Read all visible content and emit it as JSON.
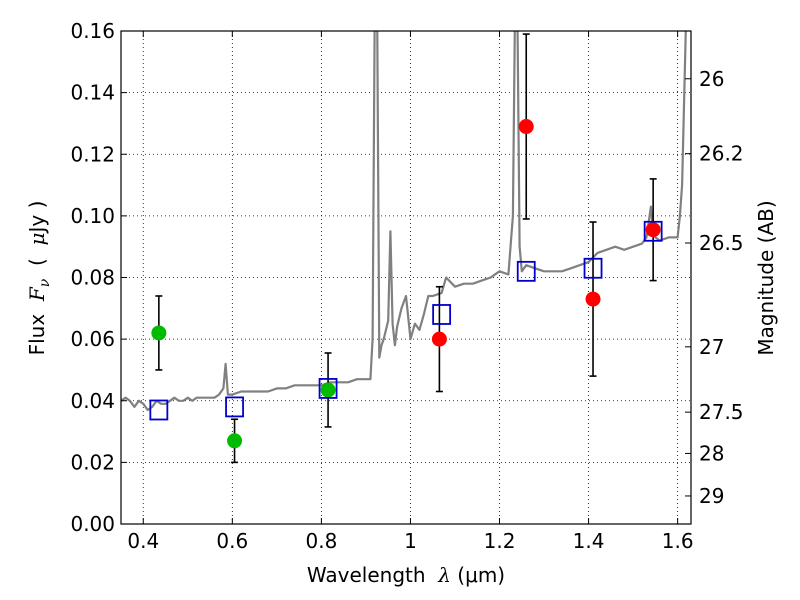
{
  "chart_data": {
    "type": "scatter",
    "title": "",
    "xlabel": {
      "prefix": "Wavelength  ",
      "symbol": "λ",
      "units": " (μm)"
    },
    "ylabel": {
      "prefix": "Flux  ",
      "symbol": "F",
      "subscript": "ν",
      "open": "  (  ",
      "mu": "μ",
      "unit": "Jy  )"
    },
    "y2label": "Magnitude (AB)",
    "xlim": [
      0.35,
      1.63
    ],
    "ylim": [
      0.0,
      0.16
    ],
    "xticks": [
      0.4,
      0.6,
      0.8,
      1.0,
      1.2,
      1.4,
      1.6
    ],
    "xtick_labels": [
      "0.4",
      "0.6",
      "0.8",
      "1",
      "1.2",
      "1.4",
      "1.6"
    ],
    "yticks": [
      0.0,
      0.02,
      0.04,
      0.06,
      0.08,
      0.1,
      0.12,
      0.14,
      0.16
    ],
    "ytick_labels": [
      "0.00",
      "0.02",
      "0.04",
      "0.06",
      "0.08",
      "0.10",
      "0.12",
      "0.14",
      "0.16"
    ],
    "y2ticks": [
      {
        "label": "26",
        "flux": 0.1445
      },
      {
        "label": "26.2",
        "flux": 0.1202
      },
      {
        "label": "26.5",
        "flux": 0.0912
      },
      {
        "label": "27",
        "flux": 0.0575
      },
      {
        "label": "27.5",
        "flux": 0.0363
      },
      {
        "label": "28",
        "flux": 0.0229
      },
      {
        "label": "29",
        "flux": 0.0091
      }
    ],
    "grid": true,
    "colors": {
      "model": "#808080",
      "green": "#00bb00",
      "red": "#ff0000",
      "box": "#0000cc",
      "err": "#000000"
    },
    "series": [
      {
        "name": "model-spectrum",
        "kind": "line",
        "x": [
          0.35,
          0.36,
          0.37,
          0.38,
          0.39,
          0.4,
          0.41,
          0.42,
          0.43,
          0.44,
          0.45,
          0.46,
          0.47,
          0.48,
          0.49,
          0.5,
          0.51,
          0.52,
          0.53,
          0.54,
          0.55,
          0.56,
          0.57,
          0.58,
          0.585,
          0.59,
          0.6,
          0.62,
          0.64,
          0.66,
          0.68,
          0.7,
          0.72,
          0.74,
          0.76,
          0.78,
          0.8,
          0.82,
          0.84,
          0.86,
          0.88,
          0.9,
          0.91,
          0.915,
          0.92,
          0.925,
          0.93,
          0.935,
          0.94,
          0.95,
          0.955,
          0.96,
          0.965,
          0.97,
          0.98,
          0.99,
          1.0,
          1.01,
          1.02,
          1.03,
          1.04,
          1.05,
          1.07,
          1.08,
          1.1,
          1.12,
          1.14,
          1.16,
          1.18,
          1.2,
          1.22,
          1.23,
          1.235,
          1.24,
          1.245,
          1.25,
          1.26,
          1.28,
          1.3,
          1.32,
          1.34,
          1.36,
          1.38,
          1.4,
          1.42,
          1.44,
          1.46,
          1.48,
          1.5,
          1.52,
          1.53,
          1.54,
          1.545,
          1.55,
          1.56,
          1.58,
          1.6,
          1.605,
          1.61,
          1.615,
          1.62,
          1.625
        ],
        "y": [
          0.04,
          0.041,
          0.04,
          0.038,
          0.04,
          0.039,
          0.037,
          0.038,
          0.04,
          0.039,
          0.039,
          0.04,
          0.041,
          0.04,
          0.04,
          0.041,
          0.04,
          0.041,
          0.041,
          0.041,
          0.041,
          0.041,
          0.042,
          0.044,
          0.052,
          0.042,
          0.042,
          0.043,
          0.043,
          0.043,
          0.043,
          0.044,
          0.044,
          0.045,
          0.045,
          0.045,
          0.045,
          0.046,
          0.046,
          0.046,
          0.047,
          0.047,
          0.047,
          0.06,
          0.17,
          0.17,
          0.054,
          0.058,
          0.06,
          0.066,
          0.095,
          0.065,
          0.058,
          0.064,
          0.07,
          0.074,
          0.06,
          0.065,
          0.063,
          0.068,
          0.074,
          0.074,
          0.075,
          0.08,
          0.077,
          0.078,
          0.078,
          0.079,
          0.08,
          0.082,
          0.081,
          0.1,
          0.17,
          0.17,
          0.09,
          0.082,
          0.084,
          0.083,
          0.082,
          0.082,
          0.082,
          0.083,
          0.084,
          0.085,
          0.088,
          0.089,
          0.09,
          0.089,
          0.09,
          0.091,
          0.093,
          0.103,
          0.094,
          0.093,
          0.092,
          0.093,
          0.093,
          0.1,
          0.11,
          0.14,
          0.17,
          0.17
        ]
      },
      {
        "name": "green-points",
        "kind": "points",
        "x": [
          0.435,
          0.605,
          0.815
        ],
        "y": [
          0.062,
          0.027,
          0.0435
        ],
        "err": [
          0.012,
          0.007,
          0.012
        ]
      },
      {
        "name": "red-points",
        "kind": "points",
        "x": [
          1.065,
          1.26,
          1.41,
          1.545
        ],
        "y": [
          0.06,
          0.129,
          0.073,
          0.0955
        ],
        "err": [
          0.017,
          0.03,
          0.025,
          0.0165
        ]
      },
      {
        "name": "model-boxes",
        "kind": "boxes",
        "x": [
          0.435,
          0.605,
          0.815,
          1.07,
          1.26,
          1.41,
          1.545
        ],
        "y": [
          0.037,
          0.038,
          0.044,
          0.068,
          0.082,
          0.083,
          0.095
        ]
      }
    ]
  }
}
